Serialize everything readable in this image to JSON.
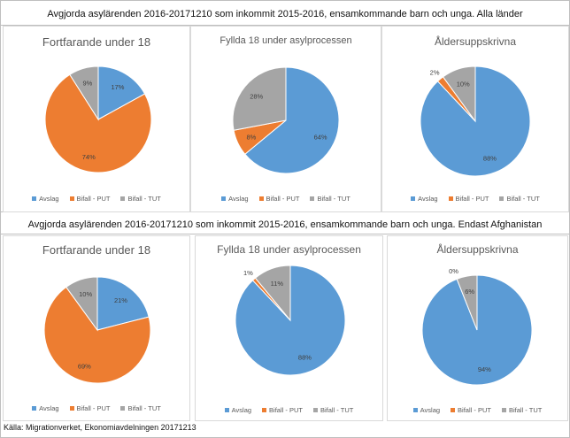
{
  "colors": {
    "Avslag": "#5b9bd5",
    "Bifall - PUT": "#ed7d31",
    "Bifall - TUT": "#a5a5a5"
  },
  "sections": [
    {
      "title": "Avgjorda asylärenden 2016-20171210 som inkommit 2015-2016, ensamkommande barn och unga. Alla länder"
    },
    {
      "title": "Avgjorda asylärenden 2016-20171210 som inkommit 2015-2016, ensamkommande barn och unga. Endast Afghanistan"
    }
  ],
  "chart_data": [
    {
      "type": "pie",
      "section": 0,
      "title": "Fortfarande under 18",
      "categories": [
        "Avslag",
        "Bifall - PUT",
        "Bifall - TUT"
      ],
      "values": [
        17,
        74,
        9
      ],
      "labels": [
        "17%",
        "74%",
        "9%"
      ],
      "legend": "bottom"
    },
    {
      "type": "pie",
      "section": 0,
      "title": "Fyllda 18 under asylprocessen",
      "categories": [
        "Avslag",
        "Bifall - PUT",
        "Bifall - TUT"
      ],
      "values": [
        64,
        8,
        28
      ],
      "labels": [
        "64%",
        "8%",
        "28%"
      ],
      "legend": "bottom"
    },
    {
      "type": "pie",
      "section": 0,
      "title": "Åldersuppskrivna",
      "categories": [
        "Avslag",
        "Bifall - PUT",
        "Bifall - TUT"
      ],
      "values": [
        88,
        2,
        10
      ],
      "labels": [
        "88%",
        "2%",
        "10%"
      ],
      "legend": "bottom"
    },
    {
      "type": "pie",
      "section": 1,
      "title": "Fortfarande under 18",
      "categories": [
        "Avslag",
        "Bifall - PUT",
        "Bifall - TUT"
      ],
      "values": [
        21,
        69,
        10
      ],
      "labels": [
        "21%",
        "69%",
        "10%"
      ],
      "legend": "bottom"
    },
    {
      "type": "pie",
      "section": 1,
      "title": "Fyllda 18 under asylprocessen",
      "categories": [
        "Avslag",
        "Bifall - PUT",
        "Bifall - TUT"
      ],
      "values": [
        88,
        1,
        11
      ],
      "labels": [
        "88%",
        "1%",
        "11%"
      ],
      "legend": "bottom"
    },
    {
      "type": "pie",
      "section": 1,
      "title": "Åldersuppskrivna",
      "categories": [
        "Avslag",
        "Bifall - PUT",
        "Bifall - TUT"
      ],
      "values": [
        94,
        0,
        6
      ],
      "labels": [
        "94%",
        "0%",
        "6%"
      ],
      "legend": "bottom"
    }
  ],
  "source": "Källa: Migrationverket, Ekonomiavdelningen 20171213"
}
